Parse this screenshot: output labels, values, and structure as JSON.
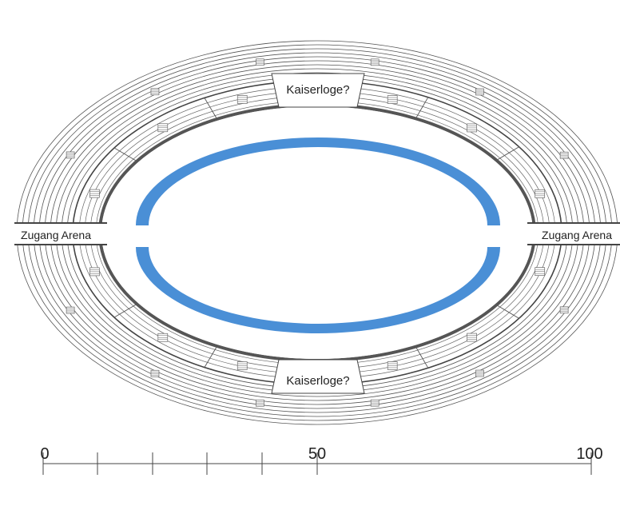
{
  "labels": {
    "kaiserloge_top": "Kaiserloge?",
    "kaiserloge_bottom": "Kaiserloge?",
    "zugang_left": "Zugang Arena",
    "zugang_right": "Zugang Arena"
  },
  "scale": {
    "ticks": [
      "0",
      "50",
      "100"
    ]
  },
  "colors": {
    "water_channel": "#4a8fd6",
    "line": "#333333",
    "thin_line": "#666666",
    "background": "#ffffff"
  }
}
